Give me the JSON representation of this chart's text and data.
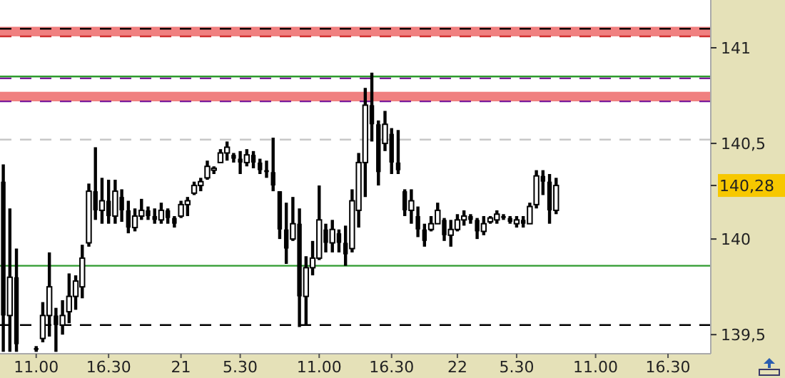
{
  "chart_data": {
    "type": "candlestick",
    "color": "#000000",
    "categories": [
      null,
      null,
      null,
      null,
      null,
      "11.00",
      null,
      null,
      null,
      null,
      null,
      null,
      null,
      null,
      null,
      null,
      "16.30",
      null,
      null,
      null,
      null,
      null,
      null,
      null,
      null,
      null,
      null,
      "21",
      null,
      null,
      null,
      null,
      null,
      null,
      null,
      null,
      "5.30",
      null,
      null,
      null,
      null,
      null,
      null,
      null,
      null,
      null,
      null,
      null,
      "11.00",
      null,
      null,
      null,
      null,
      null,
      null,
      null,
      null,
      null,
      null,
      "16.30",
      null,
      null,
      null,
      null,
      null,
      null,
      null,
      null,
      null,
      "22",
      null,
      null,
      null,
      null,
      null,
      null,
      null,
      null,
      "5.30",
      null,
      null,
      null,
      null,
      null,
      null,
      null,
      null,
      null,
      null,
      null,
      "11.00",
      null,
      null,
      null,
      null,
      null,
      null,
      null,
      null,
      null,
      null,
      "16.30",
      null,
      null,
      null,
      null,
      null,
      null
    ],
    "ohlc": [
      [
        140.3,
        140.39,
        139.41,
        139.6
      ],
      [
        139.6,
        140.16,
        139.41,
        139.8
      ],
      [
        139.8,
        139.95,
        139.41,
        139.45
      ],
      null,
      null,
      [
        139.43,
        139.44,
        139.41,
        139.42
      ],
      [
        139.48,
        139.67,
        139.46,
        139.6
      ],
      [
        139.6,
        139.93,
        139.49,
        139.75
      ],
      [
        139.6,
        139.64,
        139.41,
        139.55
      ],
      [
        139.55,
        139.68,
        139.5,
        139.6
      ],
      [
        139.62,
        139.82,
        139.56,
        139.7
      ],
      [
        139.7,
        139.81,
        139.63,
        139.78
      ],
      [
        139.75,
        139.97,
        139.69,
        139.9
      ],
      [
        139.98,
        140.29,
        139.96,
        140.25
      ],
      [
        140.25,
        140.48,
        140.1,
        140.15
      ],
      [
        140.15,
        140.32,
        140.08,
        140.2
      ],
      [
        140.2,
        140.31,
        140.08,
        140.12
      ],
      [
        140.12,
        140.31,
        140.08,
        140.25
      ],
      [
        140.22,
        140.26,
        140.09,
        140.15
      ],
      [
        140.15,
        140.2,
        140.03,
        140.06
      ],
      [
        140.06,
        140.16,
        140.04,
        140.12
      ],
      [
        140.12,
        140.21,
        140.1,
        140.15
      ],
      [
        140.15,
        140.17,
        140.1,
        140.12
      ],
      [
        140.12,
        140.16,
        140.08,
        140.1
      ],
      [
        140.1,
        140.19,
        140.08,
        140.15
      ],
      [
        140.15,
        140.16,
        140.08,
        140.11
      ],
      [
        140.11,
        140.12,
        140.06,
        140.08
      ],
      [
        140.12,
        140.2,
        140.11,
        140.18
      ],
      [
        140.18,
        140.22,
        140.12,
        140.2
      ],
      [
        140.24,
        140.3,
        140.23,
        140.28
      ],
      [
        140.28,
        140.32,
        140.25,
        140.3
      ],
      [
        140.32,
        140.41,
        140.31,
        140.38
      ],
      [
        140.36,
        140.38,
        140.34,
        140.37
      ],
      [
        140.4,
        140.47,
        140.4,
        140.45
      ],
      [
        140.45,
        140.51,
        140.41,
        140.48
      ],
      [
        140.44,
        140.45,
        140.4,
        140.42
      ],
      [
        140.42,
        140.46,
        140.34,
        140.4
      ],
      [
        140.4,
        140.47,
        140.38,
        140.44
      ],
      [
        140.44,
        140.46,
        140.37,
        140.4
      ],
      [
        140.4,
        140.42,
        140.34,
        140.36
      ],
      [
        140.36,
        140.41,
        140.32,
        140.35
      ],
      [
        140.35,
        140.53,
        140.25,
        140.28
      ],
      [
        140.25,
        140.25,
        140.0,
        140.05
      ],
      [
        140.05,
        140.19,
        139.87,
        139.95
      ],
      [
        140.0,
        140.22,
        139.99,
        140.08
      ],
      [
        140.08,
        140.16,
        139.54,
        139.7
      ],
      [
        139.7,
        139.91,
        139.55,
        139.85
      ],
      [
        139.85,
        139.99,
        139.81,
        139.9
      ],
      [
        139.9,
        140.28,
        139.89,
        140.1
      ],
      [
        140.05,
        140.08,
        139.93,
        139.98
      ],
      [
        139.98,
        140.1,
        139.93,
        140.05
      ],
      [
        140.03,
        140.05,
        139.93,
        139.98
      ],
      [
        139.98,
        140.07,
        139.86,
        139.92
      ],
      [
        139.95,
        140.26,
        139.93,
        140.2
      ],
      [
        140.15,
        140.45,
        140.06,
        140.4
      ],
      [
        140.4,
        140.79,
        140.22,
        140.7
      ],
      [
        140.7,
        140.87,
        140.51,
        140.6
      ],
      [
        140.6,
        140.62,
        140.28,
        140.35
      ],
      [
        140.5,
        140.67,
        140.46,
        140.6
      ],
      [
        140.55,
        140.58,
        140.34,
        140.4
      ],
      [
        140.4,
        140.57,
        140.34,
        140.36
      ],
      [
        140.25,
        140.26,
        140.12,
        140.15
      ],
      [
        140.15,
        140.26,
        140.08,
        140.2
      ],
      [
        140.12,
        140.17,
        140.01,
        140.05
      ],
      [
        140.05,
        140.08,
        139.96,
        139.99
      ],
      [
        140.05,
        140.12,
        140.04,
        140.08
      ],
      [
        140.08,
        140.19,
        140.08,
        140.15
      ],
      [
        140.1,
        140.11,
        139.99,
        140.02
      ],
      [
        140.02,
        140.1,
        139.96,
        140.05
      ],
      [
        140.05,
        140.13,
        140.04,
        140.1
      ],
      [
        140.1,
        140.15,
        140.07,
        140.12
      ],
      [
        140.12,
        140.13,
        140.08,
        140.1
      ],
      [
        140.1,
        140.11,
        140.0,
        140.04
      ],
      [
        140.04,
        140.12,
        140.02,
        140.08
      ],
      [
        140.09,
        140.12,
        140.08,
        140.11
      ],
      [
        140.1,
        140.15,
        140.08,
        140.13
      ],
      [
        140.12,
        140.13,
        140.1,
        140.11
      ],
      [
        140.11,
        140.12,
        140.08,
        140.09
      ],
      [
        140.08,
        140.12,
        140.06,
        140.1
      ],
      [
        140.1,
        140.12,
        140.06,
        140.08
      ],
      [
        140.08,
        140.19,
        140.08,
        140.17
      ],
      [
        140.18,
        140.36,
        140.16,
        140.33
      ],
      [
        140.33,
        140.36,
        140.23,
        140.3
      ],
      [
        140.3,
        140.34,
        140.08,
        140.15
      ],
      [
        140.15,
        140.32,
        140.13,
        140.28
      ],
      null,
      null,
      null,
      null,
      null,
      null,
      null,
      null,
      null,
      null,
      null,
      null,
      null,
      null,
      null,
      null,
      null,
      null,
      null,
      null,
      null,
      null,
      null
    ],
    "ylim": [
      139.4,
      141.25
    ],
    "yticks": [
      {
        "value": 139.5,
        "label": "139,5"
      },
      140,
      {
        "value": 140.5,
        "label": "140,5"
      },
      141
    ],
    "ref_lines": [
      {
        "axis": "y",
        "value": 141.1,
        "color": "#000000",
        "line_style": "dashed"
      },
      {
        "axis": "y",
        "value": 141.06,
        "color": "#d03030",
        "line_style": "dashed"
      },
      {
        "axis": "y",
        "value": 140.85,
        "color": "#2e9a2e",
        "line_style": "solid"
      },
      {
        "axis": "y",
        "value": 140.84,
        "color": "#7a1a9a",
        "line_style": "dashed"
      },
      {
        "axis": "y",
        "value": 140.72,
        "color": "#7a1a9a",
        "line_style": "dashed"
      },
      {
        "axis": "y",
        "value": 140.52,
        "color": "#c8c8c8",
        "line_style": "dashed"
      },
      {
        "axis": "y",
        "value": 139.86,
        "color": "#2e9a2e",
        "line_style": "solid"
      },
      {
        "axis": "y",
        "value": 139.55,
        "color": "#000000",
        "line_style": "dashed"
      }
    ],
    "bands": [
      {
        "axis": "y",
        "from": 141.06,
        "to": 141.11,
        "color": "#f08080"
      },
      {
        "axis": "y",
        "from": 140.72,
        "to": 140.77,
        "color": "#f08080"
      }
    ],
    "annotations": [
      "140,28"
    ]
  }
}
